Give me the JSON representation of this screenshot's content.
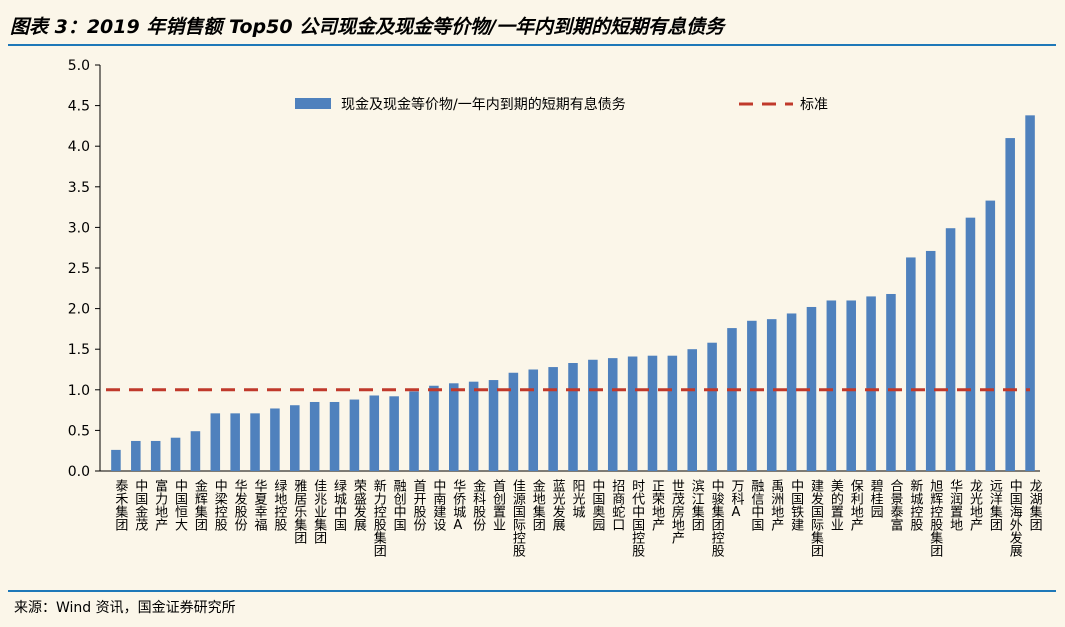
{
  "title": "图表 3：2019 年销售额 Top50 公司现金及现金等价物/一年内到期的短期有息债务",
  "source": "来源：Wind 资讯，国金证券研究所",
  "chart_data": {
    "type": "bar",
    "categories": [
      "泰禾集团",
      "中国金茂",
      "富力地产",
      "中国恒大",
      "金辉集团",
      "中梁控股",
      "华发股份",
      "华夏幸福",
      "绿地控股",
      "雅居乐集团",
      "佳兆业集团",
      "绿城中国",
      "荣盛发展",
      "新力控股集团",
      "融创中国",
      "首开股份",
      "中南建设",
      "华侨城A",
      "金科股份",
      "首创置业",
      "佳源国际控股",
      "金地集团",
      "蓝光发展",
      "阳光城",
      "中国奥园",
      "招商蛇口",
      "时代中国控股",
      "正荣地产",
      "世茂房地产",
      "滨江集团",
      "中骏集团控股",
      "万科A",
      "融信中国",
      "禹洲地产",
      "中国铁建",
      "建发国际集团",
      "美的置业",
      "保利地产",
      "碧桂园",
      "合景泰富",
      "新城控股",
      "旭辉控股集团",
      "华润置地",
      "龙光地产",
      "远洋集团",
      "中国海外发展",
      "龙湖集团"
    ],
    "series": [
      {
        "name": "现金及现金等价物/一年内到期的短期有息债务",
        "type": "bar",
        "color": "#4f81bd",
        "values": [
          0.26,
          0.37,
          0.37,
          0.41,
          0.49,
          0.71,
          0.71,
          0.71,
          0.77,
          0.81,
          0.85,
          0.85,
          0.88,
          0.93,
          0.92,
          0.98,
          1.05,
          1.08,
          1.1,
          1.12,
          1.21,
          1.25,
          1.28,
          1.33,
          1.37,
          1.39,
          1.41,
          1.42,
          1.42,
          1.5,
          1.58,
          1.76,
          1.85,
          1.87,
          1.94,
          2.02,
          2.1,
          2.1,
          2.15,
          2.18,
          2.63,
          2.71,
          2.99,
          3.12,
          3.33,
          4.1,
          4.38
        ]
      },
      {
        "name": "标准",
        "type": "line",
        "style": "dashed",
        "color": "#c0392b",
        "value": 1.0
      }
    ],
    "yticks": [
      "0.0",
      "0.5",
      "1.0",
      "1.5",
      "2.0",
      "2.5",
      "3.0",
      "3.5",
      "4.0",
      "4.5",
      "5.0"
    ],
    "ylim": [
      0,
      5
    ],
    "xlabel": "",
    "ylabel": "",
    "legend": "top",
    "grid": false
  }
}
